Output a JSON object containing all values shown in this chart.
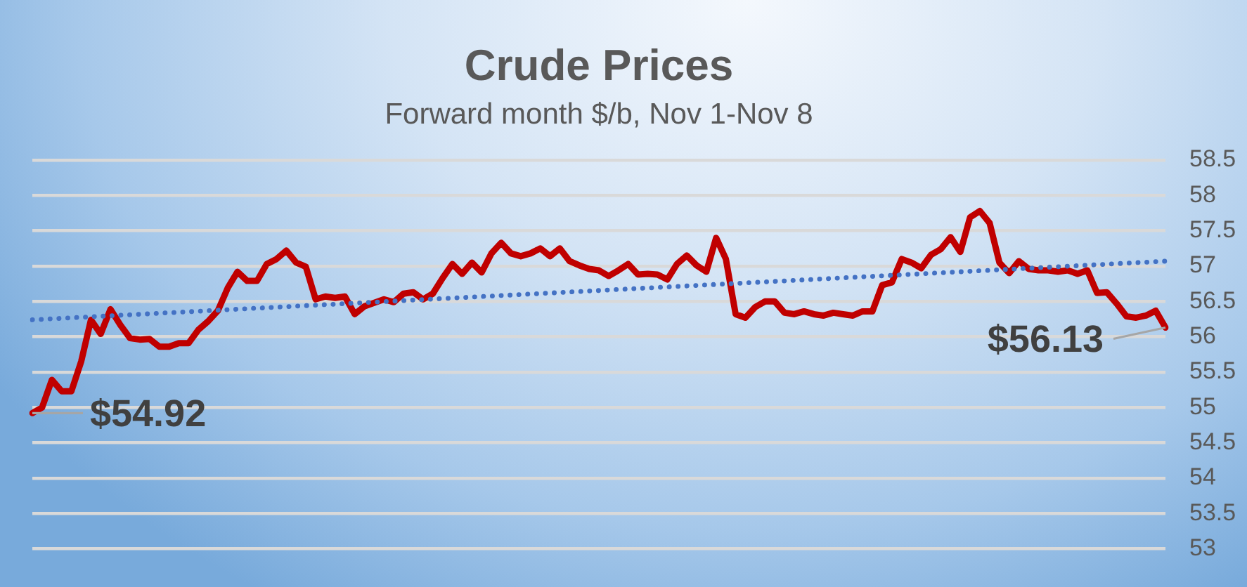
{
  "chart_data": {
    "type": "line",
    "title": "Crude Prices",
    "subtitle": "Forward month $/b, Nov 1-Nov 8",
    "categories": [
      null,
      null,
      null,
      null,
      null,
      null,
      null,
      null,
      null,
      null,
      null,
      null,
      null,
      null,
      null,
      null,
      null,
      null,
      null,
      null,
      null,
      null,
      null,
      null,
      null,
      null,
      null,
      null,
      null,
      null,
      null,
      null,
      null,
      null,
      null,
      null,
      null,
      null,
      null,
      null,
      null,
      null,
      null,
      null,
      null,
      null,
      null,
      null,
      null,
      null,
      null,
      null,
      null,
      null,
      null,
      null,
      null,
      null,
      null,
      null,
      null,
      null,
      null,
      null,
      null,
      null,
      null,
      null,
      null,
      null,
      null,
      null,
      null,
      null,
      null,
      null,
      null,
      null,
      null,
      null,
      null,
      null,
      null,
      null,
      null,
      null,
      null,
      null,
      null,
      null,
      null,
      null,
      null,
      null,
      null,
      null,
      null,
      null,
      null,
      null,
      null,
      null,
      null,
      null,
      null,
      null,
      null,
      null,
      null,
      null,
      null,
      null,
      null,
      null,
      null,
      null,
      null
    ],
    "series": [
      {
        "color": "#c00000",
        "values": [
          54.92,
          55.0,
          55.39,
          55.23,
          55.23,
          55.65,
          56.24,
          56.04,
          56.39,
          56.17,
          55.98,
          55.96,
          55.97,
          55.86,
          55.86,
          55.91,
          55.91,
          56.1,
          56.22,
          56.37,
          56.69,
          56.92,
          56.79,
          56.79,
          57.03,
          57.1,
          57.22,
          57.05,
          56.99,
          56.53,
          56.57,
          56.55,
          56.57,
          56.32,
          56.43,
          56.48,
          56.53,
          56.49,
          56.61,
          56.63,
          56.53,
          56.61,
          56.83,
          57.03,
          56.89,
          57.05,
          56.91,
          57.18,
          57.33,
          57.18,
          57.14,
          57.18,
          57.25,
          57.14,
          57.25,
          57.07,
          57.01,
          56.96,
          56.94,
          56.86,
          56.94,
          57.03,
          56.88,
          56.89,
          56.88,
          56.81,
          57.03,
          57.15,
          57.01,
          56.92,
          57.4,
          57.1,
          56.32,
          56.27,
          56.42,
          56.5,
          56.5,
          56.34,
          56.32,
          56.36,
          56.32,
          56.3,
          56.34,
          56.32,
          56.3,
          56.36,
          56.36,
          56.73,
          56.77,
          57.1,
          57.05,
          56.97,
          57.16,
          57.24,
          57.41,
          57.2,
          57.69,
          57.78,
          57.61,
          57.05,
          56.9,
          57.07,
          56.96,
          56.94,
          56.94,
          56.92,
          56.94,
          56.89,
          56.94,
          56.62,
          56.63,
          56.47,
          56.29,
          56.27,
          56.3,
          56.37,
          56.13
        ],
        "value_labels": [
          "$54.92",
          null,
          null,
          null,
          null,
          null,
          null,
          null,
          null,
          null,
          null,
          null,
          null,
          null,
          null,
          null,
          null,
          null,
          null,
          null,
          null,
          null,
          null,
          null,
          null,
          null,
          null,
          null,
          null,
          null,
          null,
          null,
          null,
          null,
          null,
          null,
          null,
          null,
          null,
          null,
          null,
          null,
          null,
          null,
          null,
          null,
          null,
          null,
          null,
          null,
          null,
          null,
          null,
          null,
          null,
          null,
          null,
          null,
          null,
          null,
          null,
          null,
          null,
          null,
          null,
          null,
          null,
          null,
          null,
          null,
          null,
          null,
          null,
          null,
          null,
          null,
          null,
          null,
          null,
          null,
          null,
          null,
          null,
          null,
          null,
          null,
          null,
          null,
          null,
          null,
          null,
          null,
          null,
          null,
          null,
          null,
          null,
          null,
          null,
          null,
          null,
          null,
          null,
          null,
          null,
          null,
          null,
          null,
          null,
          null,
          null,
          null,
          null,
          null,
          null,
          null,
          "$56.13"
        ]
      },
      {
        "type": "line",
        "color": "#4472c4",
        "line_style": "dotted",
        "values": [
          56.24,
          null,
          null,
          null,
          null,
          null,
          null,
          null,
          null,
          null,
          null,
          null,
          null,
          null,
          null,
          null,
          null,
          null,
          null,
          null,
          null,
          null,
          null,
          null,
          null,
          null,
          null,
          null,
          null,
          null,
          null,
          null,
          null,
          null,
          null,
          null,
          null,
          null,
          null,
          null,
          null,
          null,
          null,
          null,
          null,
          null,
          null,
          null,
          null,
          null,
          null,
          null,
          null,
          null,
          null,
          null,
          null,
          null,
          null,
          null,
          null,
          null,
          null,
          null,
          null,
          null,
          null,
          null,
          null,
          null,
          null,
          null,
          null,
          null,
          null,
          null,
          null,
          null,
          null,
          null,
          null,
          null,
          null,
          null,
          null,
          null,
          null,
          null,
          null,
          null,
          null,
          null,
          null,
          null,
          null,
          null,
          null,
          null,
          null,
          null,
          null,
          null,
          null,
          null,
          null,
          null,
          null,
          null,
          null,
          null,
          null,
          null,
          null,
          null,
          null,
          null,
          57.07
        ]
      }
    ],
    "ylim": [
      53,
      58.5
    ],
    "yticks": [
      53,
      53.5,
      54,
      54.5,
      55,
      55.5,
      56,
      56.5,
      57,
      57.5,
      58,
      58.5
    ],
    "grid": "y",
    "legend": false,
    "tick_labels": "y",
    "marker": "none"
  }
}
